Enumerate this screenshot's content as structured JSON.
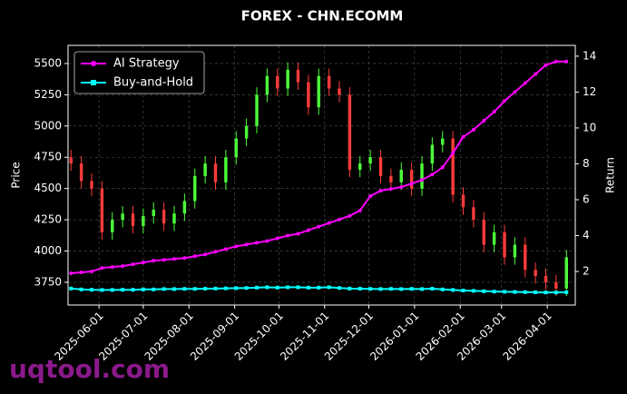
{
  "chart_data": {
    "type": "candlestick",
    "title": "FOREX - CHN.ECOMM",
    "ylabel": "Price",
    "y2label": "Return",
    "watermark": "uqtool.com",
    "legend": "upper left",
    "grid": true,
    "up_color": "#4cff3a",
    "down_color": "#ff3b3b",
    "xlim": [
      "2025-05-11",
      "2026-04-20"
    ],
    "xticks": [
      "2025-06-01",
      "2025-07-01",
      "2025-08-01",
      "2025-09-01",
      "2025-10-01",
      "2025-11-01",
      "2025-12-01",
      "2026-01-01",
      "2026-02-01",
      "2026-03-01",
      "2026-04-01"
    ],
    "ylim": [
      3568,
      5645
    ],
    "yticks": [
      3750,
      4000,
      4250,
      4500,
      4750,
      5000,
      5250,
      5500
    ],
    "y2lim": [
      0.13,
      14.6
    ],
    "y2ticks": [
      2,
      4,
      6,
      8,
      10,
      12,
      14
    ],
    "x": [
      "2025-05-13",
      "2025-05-20",
      "2025-05-27",
      "2025-06-03",
      "2025-06-10",
      "2025-06-17",
      "2025-06-24",
      "2025-07-01",
      "2025-07-08",
      "2025-07-15",
      "2025-07-22",
      "2025-07-29",
      "2025-08-05",
      "2025-08-12",
      "2025-08-19",
      "2025-08-26",
      "2025-09-02",
      "2025-09-09",
      "2025-09-16",
      "2025-09-23",
      "2025-09-30",
      "2025-10-07",
      "2025-10-14",
      "2025-10-21",
      "2025-10-28",
      "2025-11-04",
      "2025-11-11",
      "2025-11-18",
      "2025-11-25",
      "2025-12-02",
      "2025-12-09",
      "2025-12-16",
      "2025-12-23",
      "2025-12-30",
      "2026-01-06",
      "2026-01-13",
      "2026-01-20",
      "2026-01-27",
      "2026-02-03",
      "2026-02-10",
      "2026-02-17",
      "2026-02-24",
      "2026-03-03",
      "2026-03-10",
      "2026-03-17",
      "2026-03-24",
      "2026-03-31",
      "2026-04-07",
      "2026-04-14"
    ],
    "open": [
      4750,
      4700,
      4560,
      4500,
      4150,
      4250,
      4300,
      4200,
      4280,
      4330,
      4220,
      4300,
      4400,
      4600,
      4700,
      4550,
      4750,
      4900,
      5000,
      5250,
      5400,
      5300,
      5450,
      5350,
      5150,
      5400,
      5300,
      5250,
      4650,
      4700,
      4750,
      4600,
      4550,
      4650,
      4500,
      4700,
      4850,
      4900,
      4450,
      4350,
      4250,
      4050,
      4150,
      3950,
      4050,
      3850,
      3800,
      3750,
      3700
    ],
    "high": [
      4810,
      4760,
      4620,
      4560,
      4310,
      4360,
      4360,
      4340,
      4390,
      4390,
      4360,
      4460,
      4660,
      4760,
      4760,
      4810,
      4960,
      5060,
      5310,
      5460,
      5460,
      5510,
      5510,
      5410,
      5460,
      5460,
      5360,
      5310,
      4760,
      4810,
      4810,
      4660,
      4710,
      4710,
      4760,
      4910,
      4960,
      4960,
      4510,
      4410,
      4310,
      4210,
      4210,
      4110,
      4110,
      3910,
      3860,
      3810,
      4010
    ],
    "low": [
      4640,
      4500,
      4440,
      4090,
      4090,
      4190,
      4140,
      4140,
      4220,
      4160,
      4160,
      4240,
      4340,
      4540,
      4490,
      4490,
      4690,
      4840,
      4940,
      5190,
      5240,
      5240,
      5290,
      5090,
      5090,
      5240,
      5190,
      4590,
      4590,
      4640,
      4540,
      4490,
      4490,
      4440,
      4440,
      4640,
      4790,
      4390,
      4290,
      4190,
      3990,
      3990,
      3890,
      3890,
      3790,
      3740,
      3690,
      3640,
      3640
    ],
    "close": [
      4700,
      4560,
      4500,
      4150,
      4250,
      4300,
      4200,
      4280,
      4330,
      4220,
      4300,
      4400,
      4600,
      4700,
      4550,
      4750,
      4900,
      5000,
      5250,
      5400,
      5300,
      5450,
      5350,
      5150,
      5400,
      5300,
      5250,
      4650,
      4700,
      4750,
      4600,
      4550,
      4650,
      4500,
      4700,
      4850,
      4900,
      4450,
      4350,
      4250,
      4050,
      4150,
      3950,
      4050,
      3850,
      3800,
      3750,
      3700,
      3950
    ],
    "series": [
      {
        "name": "AI Strategy",
        "color": "#ff00ff",
        "axis": "y2",
        "marker": "circle",
        "values": [
          1.9,
          1.95,
          2.0,
          2.2,
          2.25,
          2.3,
          2.4,
          2.5,
          2.6,
          2.65,
          2.7,
          2.75,
          2.85,
          2.95,
          3.1,
          3.25,
          3.4,
          3.5,
          3.6,
          3.7,
          3.85,
          4.0,
          4.1,
          4.3,
          4.5,
          4.7,
          4.9,
          5.1,
          5.4,
          6.2,
          6.5,
          6.6,
          6.7,
          6.9,
          7.1,
          7.4,
          7.8,
          8.6,
          9.5,
          9.9,
          10.4,
          10.9,
          11.5,
          12.0,
          12.5,
          13.0,
          13.5,
          13.7,
          13.7
        ]
      },
      {
        "name": "Buy-and-Hold",
        "color": "#00ffff",
        "axis": "y2",
        "marker": "square",
        "values": [
          1.05,
          1.0,
          0.98,
          0.97,
          0.97,
          0.98,
          0.98,
          1.0,
          1.0,
          1.02,
          1.02,
          1.03,
          1.03,
          1.04,
          1.05,
          1.06,
          1.07,
          1.08,
          1.1,
          1.12,
          1.1,
          1.12,
          1.12,
          1.1,
          1.1,
          1.12,
          1.08,
          1.05,
          1.04,
          1.03,
          1.02,
          1.03,
          1.02,
          1.03,
          1.02,
          1.04,
          1.0,
          0.97,
          0.94,
          0.92,
          0.9,
          0.88,
          0.87,
          0.86,
          0.85,
          0.84,
          0.83,
          0.83,
          0.84
        ]
      }
    ]
  }
}
